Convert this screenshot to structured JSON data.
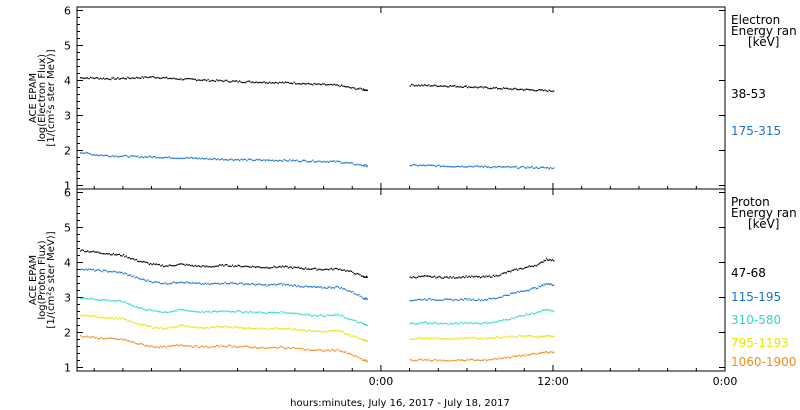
{
  "chart_data": [
    {
      "type": "scatter",
      "panel": "electron",
      "ylabel_lines": [
        "ACE EPAM",
        "log(Electron Flux)",
        "[1/(cm²s ster MeV)]"
      ],
      "ylim": [
        0.9,
        6.1
      ],
      "yticks": [
        "1",
        "2",
        "3",
        "4",
        "5",
        "6"
      ],
      "header_lines": [
        "Electron",
        "Energy ran",
        "[keV]"
      ],
      "series": [
        {
          "name": "38-53",
          "color": "#000000",
          "segments": [
            {
              "x": [
                -21,
                -20,
                -19,
                -18,
                -17,
                -16,
                -15,
                -14,
                -13,
                -12,
                -11,
                -10,
                -9,
                -8,
                -7,
                -6,
                -5,
                -4,
                -3,
                -2,
                -1.3,
                -1
              ],
              "y": [
                4.08,
                4.07,
                4.05,
                4.06,
                4.08,
                4.1,
                4.07,
                4.04,
                4.03,
                4.0,
                3.99,
                3.97,
                3.96,
                3.95,
                3.94,
                3.93,
                3.9,
                3.88,
                3.86,
                3.78,
                3.75,
                3.72
              ]
            },
            {
              "x": [
                2,
                3,
                4,
                5,
                6,
                7,
                8,
                9,
                10,
                11,
                12
              ],
              "y": [
                3.87,
                3.86,
                3.85,
                3.84,
                3.82,
                3.8,
                3.78,
                3.76,
                3.74,
                3.72,
                3.7
              ]
            }
          ]
        },
        {
          "name": "175-315",
          "color": "#1a73c8",
          "segments": [
            {
              "x": [
                -21,
                -20,
                -19,
                -18,
                -17,
                -16,
                -15,
                -14,
                -13,
                -12,
                -11,
                -10,
                -9,
                -8,
                -7,
                -6,
                -5,
                -4,
                -3,
                -2,
                -1.3,
                -1
              ],
              "y": [
                1.95,
                1.88,
                1.85,
                1.84,
                1.82,
                1.82,
                1.8,
                1.79,
                1.78,
                1.76,
                1.75,
                1.74,
                1.73,
                1.72,
                1.72,
                1.71,
                1.7,
                1.69,
                1.68,
                1.62,
                1.58,
                1.56
              ]
            },
            {
              "x": [
                2,
                3,
                4,
                5,
                6,
                7,
                8,
                9,
                10,
                11,
                12
              ],
              "y": [
                1.58,
                1.57,
                1.56,
                1.55,
                1.55,
                1.54,
                1.53,
                1.52,
                1.52,
                1.51,
                1.5
              ]
            }
          ]
        }
      ]
    },
    {
      "type": "scatter",
      "panel": "proton",
      "ylabel_lines": [
        "ACE EPAM",
        "log(Proton Flux)",
        "[1/(cm²s ster MeV)]"
      ],
      "ylim": [
        0.9,
        6.1
      ],
      "yticks": [
        "1",
        "2",
        "3",
        "4",
        "5",
        "6"
      ],
      "header_lines": [
        "Proton",
        "Energy ran",
        "[keV]"
      ],
      "series": [
        {
          "name": "47-68",
          "color": "#000000",
          "segments": [
            {
              "x": [
                -21,
                -20,
                -19,
                -18,
                -17,
                -16,
                -15,
                -14,
                -13,
                -12,
                -11,
                -10,
                -9,
                -8,
                -7,
                -6,
                -5,
                -4,
                -3,
                -2,
                -1.3,
                -1
              ],
              "y": [
                4.35,
                4.3,
                4.25,
                4.2,
                4.05,
                3.95,
                3.9,
                3.95,
                3.9,
                3.88,
                3.92,
                3.9,
                3.88,
                3.86,
                3.88,
                3.85,
                3.82,
                3.8,
                3.82,
                3.72,
                3.6,
                3.58
              ]
            },
            {
              "x": [
                2,
                3,
                4,
                5,
                6,
                7,
                8,
                9,
                10,
                11,
                11.5,
                12
              ],
              "y": [
                3.58,
                3.6,
                3.58,
                3.57,
                3.6,
                3.58,
                3.62,
                3.75,
                3.85,
                3.95,
                4.1,
                4.05
              ]
            }
          ]
        },
        {
          "name": "115-195",
          "color": "#1a73c8",
          "segments": [
            {
              "x": [
                -21,
                -20,
                -19,
                -18,
                -17,
                -16,
                -15,
                -14,
                -13,
                -12,
                -11,
                -10,
                -9,
                -8,
                -7,
                -6,
                -5,
                -4,
                -3,
                -2,
                -1.3,
                -1
              ],
              "y": [
                3.82,
                3.78,
                3.75,
                3.7,
                3.55,
                3.45,
                3.4,
                3.45,
                3.4,
                3.38,
                3.42,
                3.4,
                3.38,
                3.35,
                3.38,
                3.34,
                3.3,
                3.28,
                3.3,
                3.15,
                3.0,
                2.95
              ]
            },
            {
              "x": [
                2,
                3,
                4,
                5,
                6,
                7,
                8,
                9,
                10,
                11,
                11.5,
                12
              ],
              "y": [
                2.92,
                2.95,
                2.94,
                2.93,
                2.95,
                2.93,
                2.98,
                3.1,
                3.2,
                3.3,
                3.4,
                3.35
              ]
            }
          ]
        },
        {
          "name": "310-580",
          "color": "#33d6c8",
          "segments": [
            {
              "x": [
                -21,
                -20,
                -19,
                -18,
                -17,
                -16,
                -15,
                -14,
                -13,
                -12,
                -11,
                -10,
                -9,
                -8,
                -7,
                -6,
                -5,
                -4,
                -3,
                -2,
                -1.3,
                -1
              ],
              "y": [
                3.0,
                2.95,
                2.92,
                2.88,
                2.72,
                2.62,
                2.58,
                2.65,
                2.6,
                2.58,
                2.62,
                2.6,
                2.58,
                2.56,
                2.58,
                2.55,
                2.5,
                2.48,
                2.5,
                2.35,
                2.25,
                2.2
              ]
            },
            {
              "x": [
                2,
                3,
                4,
                5,
                6,
                7,
                8,
                9,
                10,
                11,
                11.5,
                12
              ],
              "y": [
                2.25,
                2.28,
                2.26,
                2.25,
                2.28,
                2.26,
                2.3,
                2.4,
                2.5,
                2.58,
                2.65,
                2.6
              ]
            }
          ]
        },
        {
          "name": "795-1193",
          "color": "#e6e600",
          "segments": [
            {
              "x": [
                -21,
                -20,
                -19,
                -18,
                -17,
                -16,
                -15,
                -14,
                -13,
                -12,
                -11,
                -10,
                -9,
                -8,
                -7,
                -6,
                -5,
                -4,
                -3,
                -2,
                -1.3,
                -1
              ],
              "y": [
                2.5,
                2.45,
                2.42,
                2.38,
                2.25,
                2.15,
                2.12,
                2.2,
                2.15,
                2.12,
                2.18,
                2.15,
                2.12,
                2.1,
                2.12,
                2.1,
                2.05,
                2.02,
                2.05,
                1.9,
                1.8,
                1.75
              ]
            },
            {
              "x": [
                2,
                3,
                4,
                5,
                6,
                7,
                8,
                9,
                10,
                11,
                11.5,
                12
              ],
              "y": [
                1.82,
                1.85,
                1.83,
                1.82,
                1.85,
                1.83,
                1.86,
                1.88,
                1.9,
                1.88,
                1.9,
                1.9
              ]
            }
          ]
        },
        {
          "name": "1060-1900",
          "color": "#f08c1a",
          "segments": [
            {
              "x": [
                -21,
                -20,
                -19,
                -18,
                -17,
                -16,
                -15,
                -14,
                -13,
                -12,
                -11,
                -10,
                -9,
                -8,
                -7,
                -6,
                -5,
                -4,
                -3,
                -2,
                -1.3,
                -1
              ],
              "y": [
                1.9,
                1.85,
                1.82,
                1.8,
                1.68,
                1.6,
                1.58,
                1.65,
                1.6,
                1.58,
                1.62,
                1.6,
                1.58,
                1.55,
                1.58,
                1.55,
                1.5,
                1.48,
                1.5,
                1.35,
                1.22,
                1.18
              ]
            },
            {
              "x": [
                2,
                3,
                4,
                5,
                6,
                7,
                8,
                9,
                10,
                11,
                11.5,
                12
              ],
              "y": [
                1.2,
                1.22,
                1.2,
                1.2,
                1.22,
                1.2,
                1.25,
                1.3,
                1.35,
                1.4,
                1.45,
                1.42
              ]
            }
          ]
        }
      ]
    }
  ],
  "xaxis": {
    "ticks": [
      {
        "value": 0,
        "label": "0:00"
      },
      {
        "value": 12,
        "label": "12:00"
      },
      {
        "value": 24,
        "label": "0:00"
      }
    ],
    "xlim": [
      -21.2,
      24
    ],
    "title": "hours:minutes, July 16, 2017 - July 18, 2017"
  }
}
